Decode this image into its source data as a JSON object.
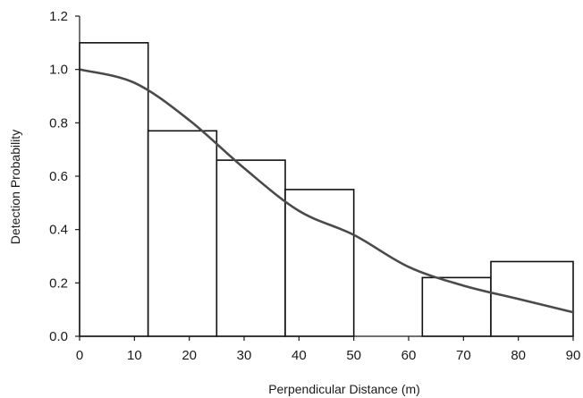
{
  "chart_data": {
    "type": "bar",
    "title": "",
    "xlabel": "Perpendicular Distance (m)",
    "ylabel": "Detection Probability",
    "xlim": [
      0,
      90
    ],
    "ylim": [
      0,
      1.2
    ],
    "x_ticks": [
      "0",
      "10",
      "20",
      "30",
      "40",
      "50",
      "60",
      "70",
      "80",
      "90"
    ],
    "y_ticks": [
      "0.0",
      "0.2",
      "0.4",
      "0.6",
      "0.8",
      "1.0",
      "1.2"
    ],
    "grid": false,
    "legend": "none",
    "histogram": {
      "bin_edges": [
        0,
        12.5,
        25,
        37.5,
        50,
        62.5,
        75,
        90
      ],
      "values": [
        1.1,
        0.77,
        0.66,
        0.55,
        0.0,
        0.22,
        0.28
      ]
    },
    "detection_curve": {
      "x": [
        0,
        10,
        20,
        30,
        40,
        50,
        60,
        70,
        80,
        90
      ],
      "y": [
        1.0,
        0.95,
        0.81,
        0.63,
        0.47,
        0.38,
        0.26,
        0.19,
        0.14,
        0.09
      ]
    },
    "colors": {
      "bar_fill": "#ffffff",
      "bar_stroke": "#111111",
      "curve": "#4a4a4a",
      "axis": "#1a1a1a"
    }
  }
}
